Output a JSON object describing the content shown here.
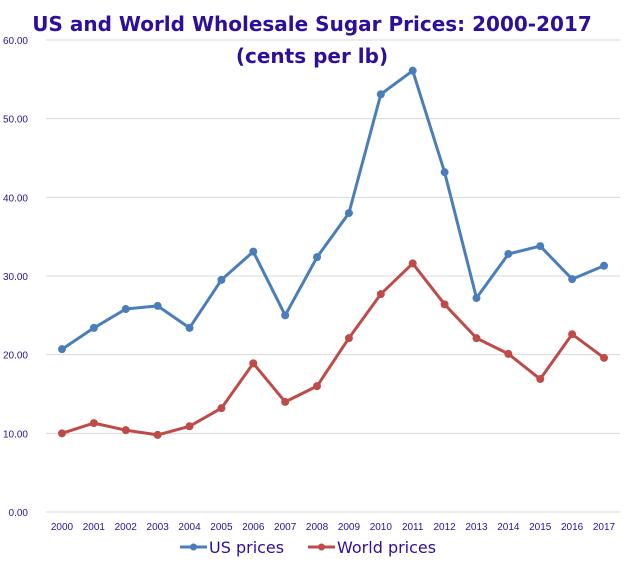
{
  "chart_data": {
    "type": "line",
    "title": "US and World Wholesale Sugar Prices: 2000-2017",
    "subtitle": "(cents per lb)",
    "xlabel": "",
    "ylabel": "",
    "x": [
      "2000",
      "2001",
      "2002",
      "2003",
      "2004",
      "2005",
      "2006",
      "2007",
      "2008",
      "2009",
      "2010",
      "2011",
      "2012",
      "2013",
      "2014",
      "2015",
      "2016",
      "2017"
    ],
    "ylim": [
      0,
      60
    ],
    "yticks": [
      "0.00",
      "10.00",
      "20.00",
      "30.00",
      "40.00",
      "50.00",
      "60.00"
    ],
    "ytick_values": [
      0,
      10,
      20,
      30,
      40,
      50,
      60
    ],
    "grid": true,
    "legend_position": "bottom",
    "series": [
      {
        "name": "US prices",
        "color": "#4a7ebb",
        "values": [
          20.7,
          23.4,
          25.8,
          26.2,
          23.4,
          29.5,
          33.1,
          25.0,
          32.4,
          38.0,
          53.1,
          56.1,
          43.2,
          27.2,
          32.8,
          33.8,
          29.6,
          31.3
        ]
      },
      {
        "name": "World prices",
        "color": "#be4b48",
        "values": [
          10.0,
          11.3,
          10.4,
          9.8,
          10.9,
          13.2,
          18.9,
          14.0,
          16.0,
          22.1,
          27.7,
          31.6,
          26.4,
          22.1,
          20.1,
          16.9,
          22.6,
          19.6
        ]
      }
    ]
  }
}
